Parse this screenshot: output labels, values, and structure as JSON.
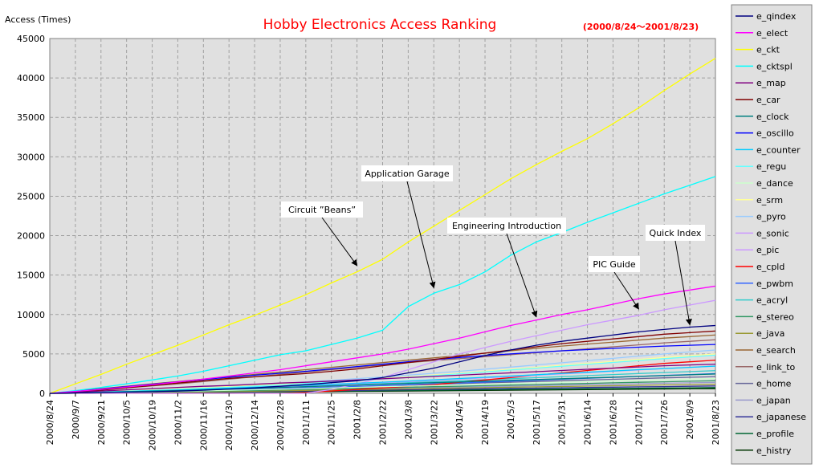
{
  "chart_data": {
    "type": "line",
    "title": "Hobby Electronics Access Ranking",
    "subtitle": "(2000/8/24～2001/8/23)",
    "ylabel": "Access (Times)",
    "xlabel": "",
    "ylim": [
      0,
      45000
    ],
    "yticks": [
      0,
      5000,
      10000,
      15000,
      20000,
      25000,
      30000,
      35000,
      40000,
      45000
    ],
    "xticks": [
      "2000/8/24",
      "2000/9/7",
      "2000/9/21",
      "2000/10/5",
      "2000/10/19",
      "2000/11/2",
      "2000/11/16",
      "2000/11/30",
      "2000/12/14",
      "2000/12/28",
      "2001/1/11",
      "2001/1/25",
      "2001/2/8",
      "2001/2/22",
      "2001/3/8",
      "2001/3/22",
      "2001/4/5",
      "2001/4/19",
      "2001/5/3",
      "2001/5/17",
      "2001/5/31",
      "2001/6/14",
      "2001/6/28",
      "2001/7/12",
      "2001/7/26",
      "2001/8/9",
      "2001/8/23"
    ],
    "grid": true,
    "legend_position": "right",
    "series": [
      {
        "name": "e_qindex",
        "color": "#000080",
        "values": [
          0,
          50,
          100,
          150,
          200,
          280,
          400,
          550,
          700,
          900,
          1100,
          1350,
          1600,
          2000,
          2600,
          3200,
          4000,
          4800,
          5500,
          6100,
          6600,
          7000,
          7400,
          7800,
          8100,
          8400,
          8600
        ]
      },
      {
        "name": "e_elect",
        "color": "#ff00ff",
        "values": [
          0,
          250,
          500,
          800,
          1100,
          1450,
          1800,
          2200,
          2600,
          3000,
          3500,
          4000,
          4500,
          5000,
          5600,
          6300,
          7000,
          7800,
          8600,
          9300,
          10000,
          10600,
          11300,
          12000,
          12600,
          13100,
          13600
        ]
      },
      {
        "name": "e_ckt",
        "color": "#ffff00",
        "values": [
          0,
          1200,
          2400,
          3700,
          4900,
          6100,
          7400,
          8700,
          9900,
          11200,
          12500,
          14000,
          15400,
          17000,
          19200,
          21200,
          23200,
          25200,
          27200,
          29000,
          30700,
          32300,
          34200,
          36200,
          38400,
          40500,
          42500
        ]
      },
      {
        "name": "e_cktspl",
        "color": "#00ffff",
        "values": [
          0,
          350,
          750,
          1200,
          1700,
          2200,
          2800,
          3500,
          4200,
          4900,
          5400,
          6200,
          7000,
          8000,
          11000,
          12700,
          13800,
          15400,
          17500,
          19200,
          20400,
          21700,
          22900,
          24100,
          25300,
          26400,
          27500
        ]
      },
      {
        "name": "e_map",
        "color": "#800080",
        "values": [
          0,
          150,
          300,
          450,
          600,
          750,
          900,
          1000,
          1150,
          1300,
          1400,
          1550,
          1700,
          1850,
          2000,
          2150,
          2300,
          2450,
          2600,
          2750,
          2900,
          3050,
          3200,
          3350,
          3500,
          3600,
          3700
        ]
      },
      {
        "name": "e_car",
        "color": "#800000",
        "values": [
          0,
          200,
          400,
          700,
          1000,
          1300,
          1600,
          1900,
          2100,
          2300,
          2500,
          2800,
          3100,
          3500,
          3900,
          4300,
          4700,
          5100,
          5500,
          5900,
          6300,
          6600,
          6900,
          7200,
          7500,
          7700,
          7900
        ]
      },
      {
        "name": "e_clock",
        "color": "#008080",
        "values": [
          0,
          50,
          120,
          200,
          280,
          360,
          450,
          550,
          650,
          750,
          850,
          950,
          1050,
          1150,
          1250,
          1350,
          1450,
          1550,
          1650,
          1750,
          1850,
          1950,
          2050,
          2150,
          2250,
          2350,
          2450
        ]
      },
      {
        "name": "e_oscillo",
        "color": "#0000ff",
        "values": [
          0,
          250,
          550,
          850,
          1150,
          1450,
          1750,
          2050,
          2300,
          2550,
          2800,
          3100,
          3400,
          3700,
          4000,
          4300,
          4550,
          4800,
          5000,
          5200,
          5400,
          5550,
          5700,
          5850,
          6000,
          6100,
          6200
        ]
      },
      {
        "name": "e_counter",
        "color": "#00ccff",
        "values": [
          0,
          60,
          140,
          230,
          330,
          430,
          540,
          660,
          780,
          900,
          1020,
          1150,
          1280,
          1420,
          1570,
          1720,
          1880,
          2040,
          2200,
          2360,
          2520,
          2680,
          2840,
          3000,
          3150,
          3300,
          3450
        ]
      },
      {
        "name": "e_regu",
        "color": "#66ffff",
        "values": [
          0,
          80,
          170,
          270,
          380,
          500,
          630,
          770,
          920,
          1080,
          1250,
          1430,
          1620,
          1820,
          2030,
          2250,
          2480,
          2720,
          2960,
          3200,
          3440,
          3680,
          3920,
          4160,
          4400,
          4620,
          4850
        ]
      },
      {
        "name": "e_dance",
        "color": "#ccffcc",
        "values": [
          0,
          40,
          90,
          140,
          200,
          260,
          320,
          390,
          460,
          530,
          600,
          680,
          760,
          840,
          920,
          1000,
          1080,
          1160,
          1240,
          1320,
          1400,
          1480,
          1560,
          1640,
          1720,
          1800,
          1880
        ]
      },
      {
        "name": "e_srm",
        "color": "#ffff99",
        "values": [
          0,
          100,
          200,
          320,
          450,
          580,
          720,
          870,
          1020,
          1180,
          1350,
          1520,
          1700,
          1900,
          2100,
          2320,
          2550,
          2800,
          3050,
          3300,
          3550,
          3800,
          4050,
          4300,
          4550,
          4780,
          5000
        ]
      },
      {
        "name": "e_pyro",
        "color": "#99ccff",
        "values": [
          0,
          100,
          210,
          330,
          460,
          600,
          750,
          910,
          1080,
          1260,
          1450,
          1650,
          1860,
          2080,
          2310,
          2550,
          2800,
          3060,
          3330,
          3600,
          3880,
          4160,
          4440,
          4720,
          5000,
          5250,
          5500
        ]
      },
      {
        "name": "e_sonic",
        "color": "#cc99ff",
        "values": [
          0,
          60,
          130,
          210,
          300,
          400,
          500,
          610,
          720,
          840,
          960,
          1090,
          1220,
          1360,
          1500,
          1650,
          1800,
          1960,
          2120,
          2290,
          2460,
          2630,
          2800,
          2970,
          3140,
          3300,
          3450
        ]
      },
      {
        "name": "e_pic",
        "color": "#cc99ff",
        "values": [
          0,
          0,
          0,
          0,
          0,
          0,
          0,
          0,
          0,
          0,
          0,
          500,
          1200,
          2000,
          3000,
          4000,
          5000,
          5800,
          6600,
          7300,
          8000,
          8700,
          9300,
          9900,
          10600,
          11200,
          11800
        ]
      },
      {
        "name": "e_cpld",
        "color": "#ff0000",
        "values": [
          0,
          0,
          0,
          0,
          0,
          0,
          0,
          0,
          0,
          0,
          100,
          300,
          500,
          700,
          900,
          1100,
          1400,
          1700,
          2000,
          2300,
          2600,
          2900,
          3200,
          3500,
          3800,
          4000,
          4200
        ]
      },
      {
        "name": "e_pwbm",
        "color": "#3366ff",
        "values": [
          0,
          40,
          90,
          150,
          210,
          280,
          350,
          430,
          510,
          600,
          690,
          780,
          880,
          980,
          1090,
          1200,
          1310,
          1430,
          1550,
          1670,
          1790,
          1910,
          2030,
          2150,
          2270,
          2380,
          2500
        ]
      },
      {
        "name": "e_acryl",
        "color": "#33cccc",
        "values": [
          0,
          60,
          130,
          210,
          290,
          380,
          470,
          570,
          670,
          780,
          890,
          1000,
          1120,
          1240,
          1360,
          1480,
          1600,
          1730,
          1860,
          1990,
          2120,
          2250,
          2380,
          2510,
          2640,
          2760,
          2880
        ]
      },
      {
        "name": "e_stereo",
        "color": "#339966",
        "values": [
          0,
          30,
          70,
          110,
          160,
          210,
          260,
          320,
          380,
          440,
          500,
          560,
          630,
          700,
          770,
          840,
          910,
          980,
          1050,
          1120,
          1190,
          1260,
          1330,
          1400,
          1470,
          1540,
          1600
        ]
      },
      {
        "name": "e_java",
        "color": "#999933",
        "values": [
          0,
          20,
          50,
          80,
          110,
          150,
          190,
          230,
          270,
          320,
          370,
          420,
          470,
          520,
          570,
          620,
          670,
          720,
          770,
          820,
          870,
          920,
          970,
          1020,
          1070,
          1110,
          1150
        ]
      },
      {
        "name": "e_search",
        "color": "#996633",
        "values": [
          0,
          300,
          600,
          900,
          1200,
          1500,
          1800,
          2100,
          2400,
          2700,
          3000,
          3300,
          3600,
          3900,
          4200,
          4500,
          4800,
          5100,
          5400,
          5700,
          6000,
          6250,
          6500,
          6750,
          7000,
          7200,
          7400
        ]
      },
      {
        "name": "e_link_to",
        "color": "#996666",
        "values": [
          0,
          200,
          450,
          700,
          950,
          1200,
          1500,
          1800,
          2100,
          2400,
          2700,
          3000,
          3300,
          3600,
          3900,
          4150,
          4400,
          4650,
          4900,
          5150,
          5400,
          5650,
          5900,
          6150,
          6400,
          6600,
          6800
        ]
      },
      {
        "name": "e_home",
        "color": "#666699",
        "values": [
          0,
          50,
          110,
          170,
          240,
          310,
          380,
          460,
          540,
          620,
          700,
          790,
          880,
          970,
          1060,
          1150,
          1240,
          1330,
          1420,
          1510,
          1600,
          1690,
          1780,
          1870,
          1960,
          2040,
          2120
        ]
      },
      {
        "name": "e_japan",
        "color": "#9999cc",
        "values": [
          0,
          30,
          70,
          110,
          150,
          190,
          240,
          290,
          340,
          390,
          440,
          500,
          560,
          620,
          680,
          740,
          800,
          860,
          920,
          980,
          1040,
          1100,
          1160,
          1220,
          1280,
          1330,
          1380
        ]
      },
      {
        "name": "e_japanese",
        "color": "#333399",
        "values": [
          0,
          20,
          45,
          70,
          100,
          130,
          160,
          190,
          220,
          260,
          300,
          340,
          380,
          420,
          460,
          500,
          540,
          580,
          620,
          660,
          700,
          740,
          780,
          820,
          860,
          900,
          940
        ]
      },
      {
        "name": "e_profile",
        "color": "#006633",
        "values": [
          0,
          15,
          35,
          55,
          80,
          105,
          130,
          160,
          190,
          220,
          250,
          280,
          310,
          340,
          370,
          400,
          430,
          460,
          490,
          520,
          550,
          580,
          610,
          640,
          670,
          700,
          730
        ]
      },
      {
        "name": "e_histry",
        "color": "#003300",
        "values": [
          0,
          10,
          25,
          40,
          60,
          80,
          100,
          125,
          150,
          175,
          200,
          225,
          250,
          275,
          300,
          325,
          350,
          375,
          400,
          425,
          450,
          475,
          500,
          525,
          550,
          570,
          590
        ]
      }
    ],
    "annotations": [
      {
        "text": "Circuit ”Beans”",
        "target_x": "2001/2/8",
        "target_y": 16000
      },
      {
        "text": "Application Garage",
        "target_x": "2001/3/22",
        "target_y": 13200
      },
      {
        "text": "Engineering Introduction",
        "target_x": "2001/5/17",
        "target_y": 9500
      },
      {
        "text": "PIC Guide",
        "target_x": "2001/7/12",
        "target_y": 10500
      },
      {
        "text": "Quick Index",
        "target_x": "2001/8/9",
        "target_y": 8500
      }
    ]
  }
}
